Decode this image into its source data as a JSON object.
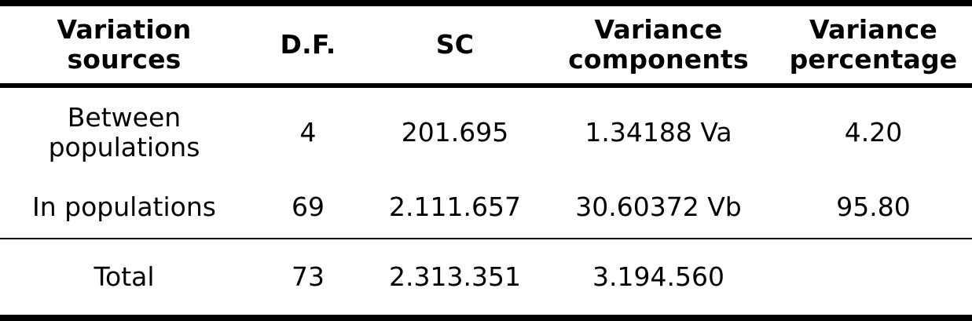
{
  "colors": {
    "text": "#000000",
    "background": "#ffffff",
    "rules": "#000000"
  },
  "table": {
    "columns": [
      "Variation sources",
      "D.F.",
      "SC",
      "Variance components",
      "Variance percentage"
    ],
    "rows": [
      [
        "Between populations",
        "4",
        "201.695",
        "1.34188 Va",
        "4.20"
      ],
      [
        "In populations",
        "69",
        "2.111.657",
        "30.60372 Vb",
        "95.80"
      ]
    ],
    "total": [
      "Total",
      "73",
      "2.313.351",
      "3.194.560",
      ""
    ]
  },
  "chart_data": {
    "type": "table",
    "columns": [
      "Variation sources",
      "D.F.",
      "SC",
      "Variance components",
      "Variance percentage"
    ],
    "rows": [
      {
        "source": "Between populations",
        "df": 4,
        "sc": "201.695",
        "variance_component": "1.34188 Va",
        "variance_percentage": 4.2
      },
      {
        "source": "In populations",
        "df": 69,
        "sc": "2.111.657",
        "variance_component": "30.60372 Vb",
        "variance_percentage": 95.8
      },
      {
        "source": "Total",
        "df": 73,
        "sc": "2.313.351",
        "variance_component": "3.194.560",
        "variance_percentage": null
      }
    ]
  }
}
